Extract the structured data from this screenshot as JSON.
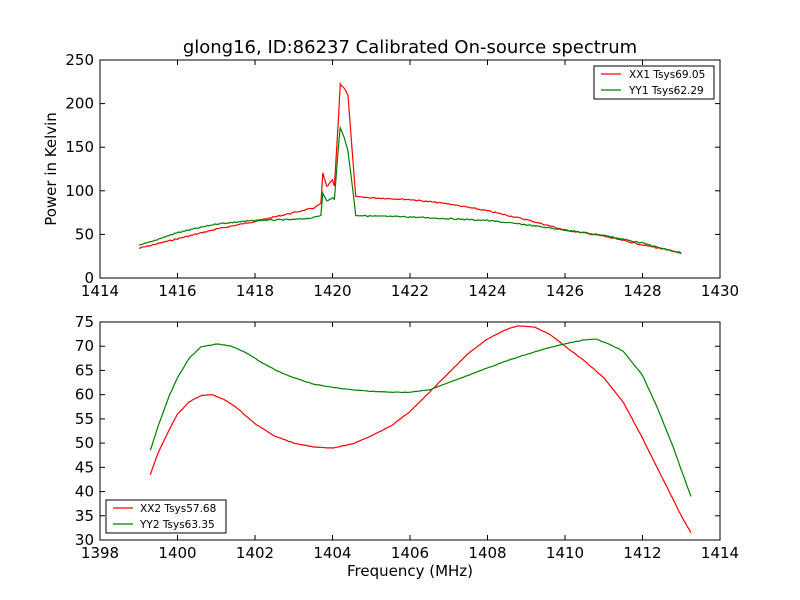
{
  "chart_data": [
    {
      "type": "line",
      "title": "glong16, ID:86237 Calibrated On-source spectrum",
      "xlabel": "",
      "ylabel": "Power in Kelvin",
      "xlim": [
        1414,
        1430
      ],
      "ylim": [
        0,
        250
      ],
      "xticks": [
        "1414",
        "1416",
        "1418",
        "1420",
        "1422",
        "1424",
        "1426",
        "1428",
        "1430"
      ],
      "yticks": [
        "0",
        "50",
        "100",
        "150",
        "200",
        "250"
      ],
      "legend_position": "top-right",
      "grid": false,
      "series": [
        {
          "name": "XX1 Tsys69.05",
          "color": "#ff0000",
          "points": [
            [
              1415.0,
              34
            ],
            [
              1416.0,
              45
            ],
            [
              1417.0,
              56
            ],
            [
              1418.0,
              65
            ],
            [
              1419.0,
              75
            ],
            [
              1419.5,
              80
            ],
            [
              1419.7,
              85
            ],
            [
              1419.75,
              120
            ],
            [
              1419.85,
              105
            ],
            [
              1420.0,
              112
            ],
            [
              1420.05,
              105
            ],
            [
              1420.15,
              180
            ],
            [
              1420.2,
              222
            ],
            [
              1420.3,
              218
            ],
            [
              1420.4,
              210
            ],
            [
              1420.5,
              150
            ],
            [
              1420.6,
              93
            ],
            [
              1421.0,
              92
            ],
            [
              1422.0,
              90
            ],
            [
              1423.0,
              85
            ],
            [
              1424.0,
              77
            ],
            [
              1425.0,
              67
            ],
            [
              1426.0,
              55
            ],
            [
              1427.0,
              48
            ],
            [
              1428.0,
              38
            ],
            [
              1429.0,
              29
            ]
          ]
        },
        {
          "name": "YY1 Tsys62.29",
          "color": "#008000",
          "points": [
            [
              1415.0,
              37
            ],
            [
              1416.0,
              52
            ],
            [
              1417.0,
              62
            ],
            [
              1418.0,
              66
            ],
            [
              1419.0,
              67
            ],
            [
              1419.5,
              69
            ],
            [
              1419.7,
              72
            ],
            [
              1419.75,
              98
            ],
            [
              1419.85,
              88
            ],
            [
              1420.0,
              92
            ],
            [
              1420.05,
              90
            ],
            [
              1420.15,
              150
            ],
            [
              1420.2,
              172
            ],
            [
              1420.3,
              162
            ],
            [
              1420.4,
              145
            ],
            [
              1420.5,
              110
            ],
            [
              1420.6,
              72
            ],
            [
              1421.0,
              71
            ],
            [
              1422.0,
              70
            ],
            [
              1423.0,
              68
            ],
            [
              1424.0,
              66
            ],
            [
              1425.0,
              61
            ],
            [
              1426.0,
              55
            ],
            [
              1427.0,
              49
            ],
            [
              1428.0,
              40
            ],
            [
              1429.0,
              28
            ]
          ]
        }
      ]
    },
    {
      "type": "line",
      "title": "",
      "xlabel": "Frequency (MHz)",
      "ylabel": "",
      "xlim": [
        1398,
        1414
      ],
      "ylim": [
        30,
        75
      ],
      "xticks": [
        "1398",
        "1400",
        "1402",
        "1404",
        "1406",
        "1408",
        "1410",
        "1412",
        "1414"
      ],
      "yticks": [
        "30",
        "35",
        "40",
        "45",
        "50",
        "55",
        "60",
        "65",
        "70",
        "75"
      ],
      "legend_position": "bottom-left",
      "grid": false,
      "series": [
        {
          "name": "XX2 Tsys57.68",
          "color": "#ff0000",
          "points": [
            [
              1399.3,
              43.5
            ],
            [
              1399.5,
              48
            ],
            [
              1399.8,
              53
            ],
            [
              1400.0,
              56
            ],
            [
              1400.3,
              58.5
            ],
            [
              1400.6,
              59.8
            ],
            [
              1400.9,
              60
            ],
            [
              1401.2,
              59
            ],
            [
              1401.5,
              57.5
            ],
            [
              1402.0,
              54
            ],
            [
              1402.5,
              51.5
            ],
            [
              1403.0,
              50
            ],
            [
              1403.5,
              49.2
            ],
            [
              1404.0,
              49
            ],
            [
              1404.5,
              49.8
            ],
            [
              1405.0,
              51.5
            ],
            [
              1405.5,
              53.5
            ],
            [
              1406.0,
              56.5
            ],
            [
              1406.5,
              60.5
            ],
            [
              1407.0,
              64.5
            ],
            [
              1407.5,
              68.5
            ],
            [
              1408.0,
              71.5
            ],
            [
              1408.5,
              73.5
            ],
            [
              1408.8,
              74.2
            ],
            [
              1409.2,
              74
            ],
            [
              1409.6,
              72.5
            ],
            [
              1410.0,
              70
            ],
            [
              1410.5,
              67
            ],
            [
              1411.0,
              63.5
            ],
            [
              1411.5,
              58.5
            ],
            [
              1412.0,
              51
            ],
            [
              1412.5,
              43
            ],
            [
              1413.0,
              35
            ],
            [
              1413.25,
              31.5
            ]
          ]
        },
        {
          "name": "YY2 Tsys63.35",
          "color": "#008000",
          "points": [
            [
              1399.3,
              48.5
            ],
            [
              1399.5,
              53.5
            ],
            [
              1399.8,
              60
            ],
            [
              1400.0,
              63.5
            ],
            [
              1400.3,
              67.5
            ],
            [
              1400.6,
              69.8
            ],
            [
              1401.0,
              70.5
            ],
            [
              1401.4,
              70
            ],
            [
              1401.8,
              68.5
            ],
            [
              1402.2,
              66.5
            ],
            [
              1402.6,
              64.8
            ],
            [
              1403.0,
              63.5
            ],
            [
              1403.5,
              62.2
            ],
            [
              1404.0,
              61.5
            ],
            [
              1404.5,
              61
            ],
            [
              1405.0,
              60.7
            ],
            [
              1405.5,
              60.5
            ],
            [
              1406.0,
              60.5
            ],
            [
              1406.5,
              61
            ],
            [
              1407.0,
              62.5
            ],
            [
              1407.5,
              64
            ],
            [
              1408.0,
              65.5
            ],
            [
              1408.5,
              67
            ],
            [
              1409.0,
              68.3
            ],
            [
              1409.5,
              69.5
            ],
            [
              1410.0,
              70.5
            ],
            [
              1410.5,
              71.3
            ],
            [
              1410.8,
              71.5
            ],
            [
              1411.2,
              70.2
            ],
            [
              1411.5,
              69
            ],
            [
              1412.0,
              64
            ],
            [
              1412.4,
              57
            ],
            [
              1412.8,
              49
            ],
            [
              1413.0,
              44.5
            ],
            [
              1413.25,
              39
            ]
          ]
        }
      ]
    }
  ]
}
